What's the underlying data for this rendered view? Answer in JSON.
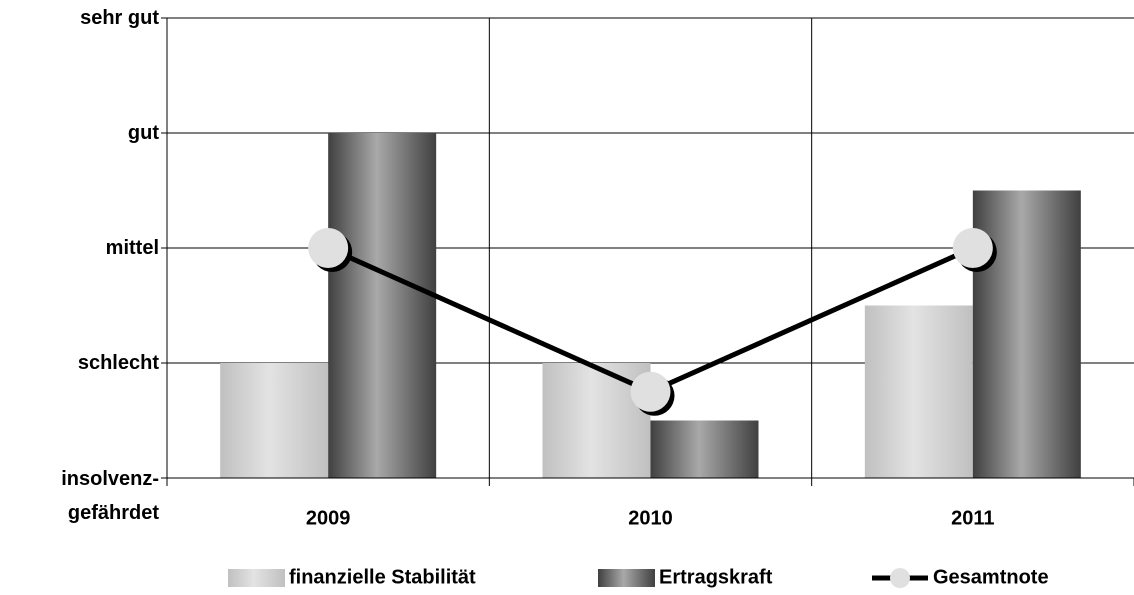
{
  "chart_data": {
    "type": "bar",
    "categories": [
      "2009",
      "2010",
      "2011"
    ],
    "series": [
      {
        "name": "finanzielle Stabilität",
        "type": "bar",
        "color": "#c0c0c0",
        "values": [
          1,
          1,
          1.5
        ]
      },
      {
        "name": "Ertragskraft",
        "type": "bar",
        "color": "#404040",
        "values": [
          3,
          0.5,
          2.5
        ]
      },
      {
        "name": "Gesamtnote",
        "type": "line",
        "color": "#000000",
        "values": [
          2,
          0.75,
          2
        ]
      }
    ],
    "ylim": [
      0,
      4
    ],
    "yticks": [
      {
        "value": 0,
        "label": "insolvenz-\ngefährdet"
      },
      {
        "value": 1,
        "label": "schlecht"
      },
      {
        "value": 2,
        "label": "mittel"
      },
      {
        "value": 3,
        "label": "gut"
      },
      {
        "value": 4,
        "label": "sehr gut"
      }
    ],
    "grid": true,
    "legend": "bottom"
  }
}
